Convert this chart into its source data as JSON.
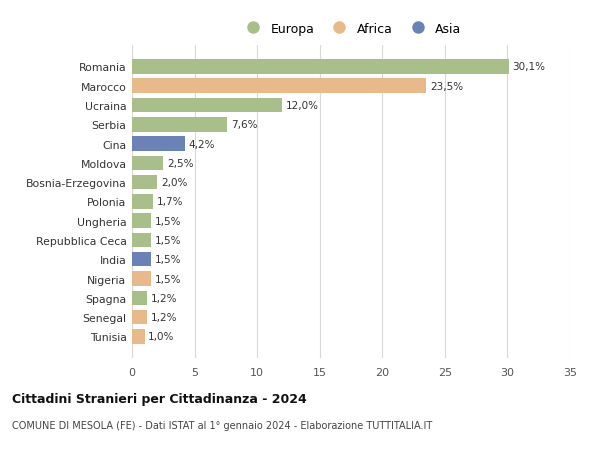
{
  "countries": [
    "Romania",
    "Marocco",
    "Ucraina",
    "Serbia",
    "Cina",
    "Moldova",
    "Bosnia-Erzegovina",
    "Polonia",
    "Ungheria",
    "Repubblica Ceca",
    "India",
    "Nigeria",
    "Spagna",
    "Senegal",
    "Tunisia"
  ],
  "values": [
    30.1,
    23.5,
    12.0,
    7.6,
    4.2,
    2.5,
    2.0,
    1.7,
    1.5,
    1.5,
    1.5,
    1.5,
    1.2,
    1.2,
    1.0
  ],
  "labels": [
    "30,1%",
    "23,5%",
    "12,0%",
    "7,6%",
    "4,2%",
    "2,5%",
    "2,0%",
    "1,7%",
    "1,5%",
    "1,5%",
    "1,5%",
    "1,5%",
    "1,2%",
    "1,2%",
    "1,0%"
  ],
  "continents": [
    "Europa",
    "Africa",
    "Europa",
    "Europa",
    "Asia",
    "Europa",
    "Europa",
    "Europa",
    "Europa",
    "Europa",
    "Asia",
    "Africa",
    "Europa",
    "Africa",
    "Africa"
  ],
  "colors": {
    "Europa": "#a8bf8a",
    "Africa": "#e8b98a",
    "Asia": "#6b82b8"
  },
  "xlim": [
    0,
    35
  ],
  "xticks": [
    0,
    5,
    10,
    15,
    20,
    25,
    30,
    35
  ],
  "title": "Cittadini Stranieri per Cittadinanza - 2024",
  "subtitle": "COMUNE DI MESOLA (FE) - Dati ISTAT al 1° gennaio 2024 - Elaborazione TUTTITALIA.IT",
  "background_color": "#ffffff",
  "grid_color": "#d8d8d8",
  "bar_height": 0.75
}
